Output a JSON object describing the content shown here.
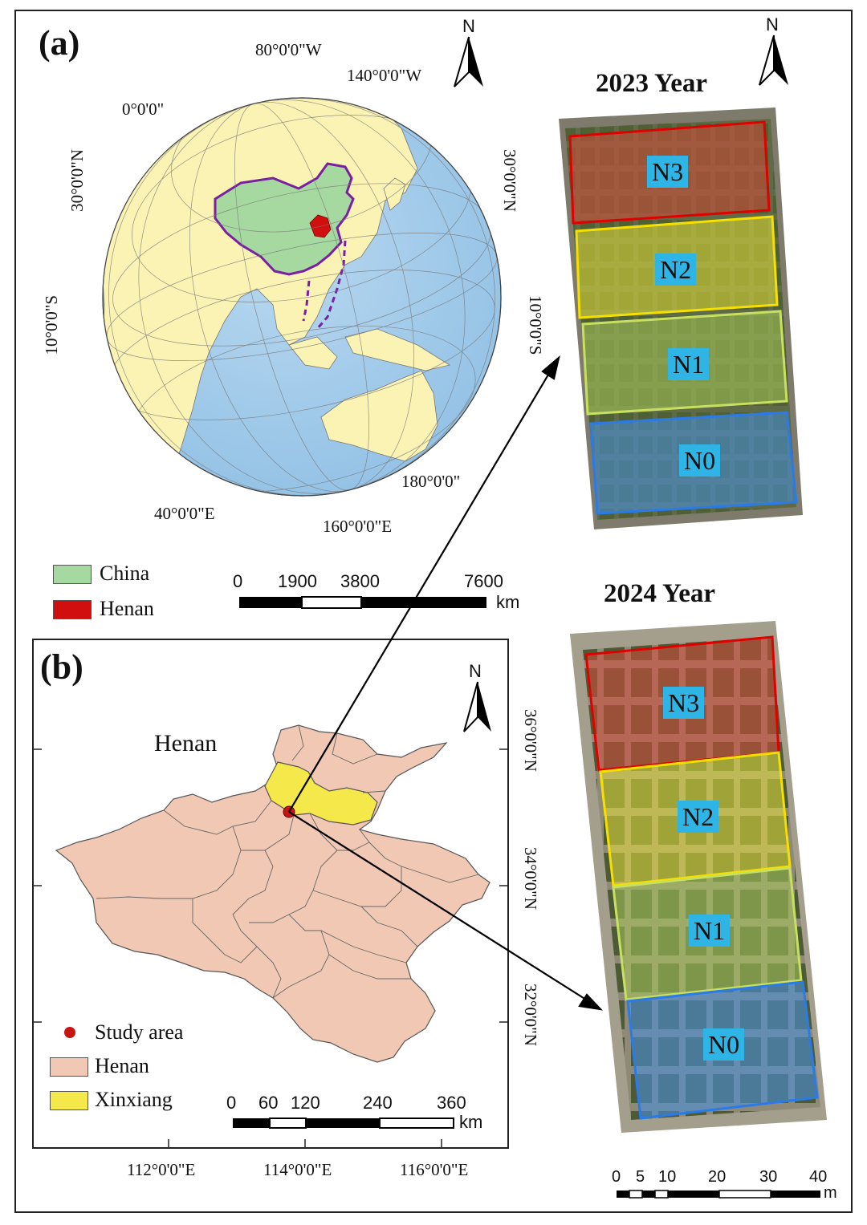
{
  "panel_a": {
    "label": "(a)",
    "coords": {
      "lon_80w": "80°0'0\"W",
      "lon_140w": "140°0'0\"W",
      "lon_0": "0°0'0\"",
      "lat_30n_left": "30°0'0\"N",
      "lat_30n_right": "30°0'0\"N",
      "lat_10s_left": "10°0'0\"S",
      "lat_10s_right": "10°0'0\"S",
      "lon_180": "180°0'0\"",
      "lon_40e": "40°0'0\"E",
      "lon_160e": "160°0'0\"E"
    },
    "north": "N",
    "legend": [
      {
        "label": "China",
        "color": "#a6d9a0"
      },
      {
        "label": "Henan",
        "color": "#d10f0f"
      }
    ],
    "scale": {
      "ticks": [
        "0",
        "1900",
        "3800",
        "7600"
      ],
      "unit": "km"
    }
  },
  "panel_b": {
    "label": "(b)",
    "region_label": "Henan",
    "north": "N",
    "lat_labels": [
      "36°0'0\"N",
      "34°0'0\"N",
      "32°0'0\"N"
    ],
    "lon_labels": [
      "112°0'0\"E",
      "114°0'0\"E",
      "116°0'0\"E"
    ],
    "legend": [
      {
        "label": "Study area",
        "color": "#c81414"
      },
      {
        "label": "Henan",
        "color": "#f0c8b4"
      },
      {
        "label": "Xinxiang",
        "color": "#f5e84a"
      }
    ],
    "scale": {
      "ticks": [
        "0",
        "60",
        "120",
        "240",
        "360"
      ],
      "unit": "km"
    }
  },
  "field_2023": {
    "year": "2023  Year",
    "north": "N",
    "plots": [
      "N3",
      "N2",
      "N1",
      "N0"
    ]
  },
  "field_2024": {
    "year": "2024  Year",
    "plots": [
      "N3",
      "N2",
      "N1",
      "N0"
    ],
    "scale": {
      "ticks": [
        "0",
        "5",
        "10",
        "20",
        "30",
        "40"
      ],
      "unit": "m"
    }
  },
  "colors": {
    "ocean": "#a9cdea",
    "land": "#fbf3b4",
    "china": "#a6d9a0",
    "china_border": "#7a1fa0",
    "henan": "#f0c8b4",
    "xinxiang": "#f5e84a",
    "study_point": "#c81414",
    "n3": "#d94a3a",
    "n2": "#e6e03a",
    "n1": "#a8c95a",
    "n0": "#4a8fd8",
    "plot_tag": "#2fb4e6"
  }
}
